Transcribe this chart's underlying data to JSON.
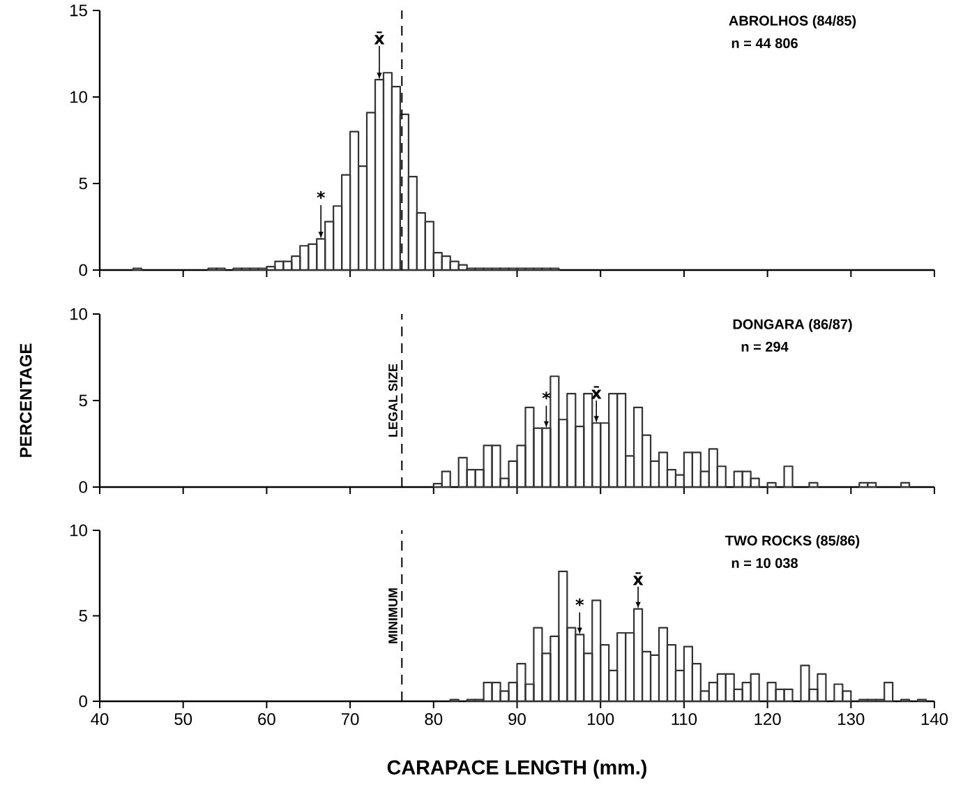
{
  "chart_data": [
    {
      "type": "histogram",
      "title": "ABROLHOS (84/85)",
      "subtitle": "n = 44 806",
      "color": "#333333",
      "bins": [
        44,
        45,
        46,
        47,
        48,
        49,
        50,
        51,
        52,
        53,
        54,
        55,
        56,
        57,
        58,
        59,
        60,
        61,
        62,
        63,
        64,
        65,
        66,
        67,
        68,
        69,
        70,
        71,
        72,
        73,
        74,
        75,
        76,
        77,
        78,
        79,
        80,
        81,
        82,
        83,
        84,
        85,
        86,
        87,
        88,
        89,
        90,
        91,
        92,
        93,
        94,
        95
      ],
      "values": [
        0.1,
        0,
        0,
        0,
        0,
        0,
        0,
        0,
        0,
        0.1,
        0.1,
        0,
        0.1,
        0.1,
        0.1,
        0.1,
        0.2,
        0.5,
        0.5,
        0.8,
        1.4,
        1.5,
        1.8,
        2.8,
        3.7,
        5.5,
        8.0,
        6.0,
        9.1,
        11.0,
        11.4,
        10.6,
        9.0,
        5.4,
        3.3,
        2.8,
        1.0,
        0.8,
        0.5,
        0.3,
        0.1,
        0.1,
        0.1,
        0.1,
        0.1,
        0.1,
        0.1,
        0.1,
        0.1,
        0.1,
        0.1
      ],
      "xlim": [
        40,
        140
      ],
      "xticks": [
        40,
        50,
        60,
        70,
        80,
        90,
        100,
        110,
        120,
        130,
        140
      ],
      "ylim": [
        0,
        15
      ],
      "yticks": [
        0,
        5,
        10,
        15
      ],
      "tick_labels": "y",
      "ref_lines": [
        {
          "axis": "x",
          "value": 76.2,
          "line_style": "dashed"
        }
      ],
      "annotations": [
        {
          "text": "*",
          "x": 66.5,
          "y": 1.8
        },
        {
          "text": "x̄",
          "x": 73.5,
          "y": 11.0
        }
      ]
    },
    {
      "type": "histogram",
      "title": "DONGARA (86/87)",
      "subtitle": "n = 294",
      "color": "#333333",
      "ylabel": "PERCENTAGE",
      "bins": [
        80,
        81,
        82,
        83,
        84,
        85,
        86,
        87,
        88,
        89,
        90,
        91,
        92,
        93,
        94,
        95,
        96,
        97,
        98,
        99,
        100,
        101,
        102,
        103,
        104,
        105,
        106,
        107,
        108,
        109,
        110,
        111,
        112,
        113,
        114,
        115,
        116,
        117,
        118,
        119,
        120,
        121,
        122,
        123,
        124,
        125,
        126,
        127,
        128,
        129,
        130,
        131,
        132,
        133,
        134,
        135,
        136,
        137
      ],
      "values": [
        0.2,
        0.9,
        0,
        1.7,
        1.0,
        1.0,
        2.4,
        2.4,
        0.5,
        1.5,
        2.4,
        4.6,
        3.4,
        3.4,
        6.4,
        3.9,
        5.4,
        3.5,
        5.4,
        3.7,
        3.7,
        5.4,
        5.4,
        1.8,
        4.6,
        3.0,
        1.5,
        2.0,
        1.0,
        0.7,
        2.0,
        2.0,
        0.9,
        2.2,
        1.2,
        0,
        0.9,
        0.9,
        0.5,
        0,
        0.25,
        0,
        1.2,
        0,
        0,
        0.25,
        0,
        0,
        0,
        0,
        0,
        0.25,
        0.25,
        0,
        0,
        0,
        0.25
      ],
      "xlim": [
        40,
        140
      ],
      "xticks": [
        40,
        50,
        60,
        70,
        80,
        90,
        100,
        110,
        120,
        130,
        140
      ],
      "ylim": [
        0,
        10
      ],
      "yticks": [
        0,
        5,
        10
      ],
      "tick_labels": "y",
      "ref_lines": [
        {
          "axis": "x",
          "value": 76.2,
          "line_style": "dashed",
          "label": "LEGAL SIZE"
        }
      ],
      "annotations": [
        {
          "text": "*",
          "x": 93.5,
          "y": 3.4
        },
        {
          "text": "x̄",
          "x": 99.5,
          "y": 3.7
        }
      ]
    },
    {
      "type": "histogram",
      "title": "TWO ROCKS (85/86)",
      "subtitle": "n = 10 038",
      "color": "#333333",
      "xlabel": "CARAPACE LENGTH (mm.)",
      "bins": [
        82,
        83,
        84,
        85,
        86,
        87,
        88,
        89,
        90,
        91,
        92,
        93,
        94,
        95,
        96,
        97,
        98,
        99,
        100,
        101,
        102,
        103,
        104,
        105,
        106,
        107,
        108,
        109,
        110,
        111,
        112,
        113,
        114,
        115,
        116,
        117,
        118,
        119,
        120,
        121,
        122,
        123,
        124,
        125,
        126,
        127,
        128,
        129,
        130,
        131,
        132,
        133,
        134,
        135,
        136,
        137,
        138,
        139
      ],
      "values": [
        0.1,
        0,
        0.1,
        0.1,
        1.1,
        1.1,
        0.6,
        1.1,
        2.2,
        1.0,
        4.3,
        2.8,
        3.8,
        7.6,
        4.3,
        3.9,
        2.8,
        5.9,
        3.3,
        1.8,
        4.0,
        4.0,
        5.4,
        2.9,
        2.7,
        4.3,
        3.3,
        1.8,
        3.2,
        2.2,
        0.6,
        1.1,
        1.6,
        1.6,
        0.7,
        1.1,
        1.6,
        0,
        1.1,
        0.7,
        0.7,
        0,
        2.1,
        0.7,
        1.6,
        0,
        1.0,
        0.6,
        0,
        0.1,
        0.1,
        0.1,
        1.1,
        0,
        0.1,
        0,
        0.1
      ],
      "xlim": [
        40,
        140
      ],
      "xticks": [
        40,
        50,
        60,
        70,
        80,
        90,
        100,
        110,
        120,
        130,
        140
      ],
      "ylim": [
        0,
        10
      ],
      "yticks": [
        0,
        5,
        10
      ],
      "ref_lines": [
        {
          "axis": "x",
          "value": 76.2,
          "line_style": "dashed",
          "label": "MINIMUM"
        }
      ],
      "annotations": [
        {
          "text": "*",
          "x": 97.5,
          "y": 3.9
        },
        {
          "text": "x̄",
          "x": 104.5,
          "y": 5.4
        }
      ]
    }
  ]
}
